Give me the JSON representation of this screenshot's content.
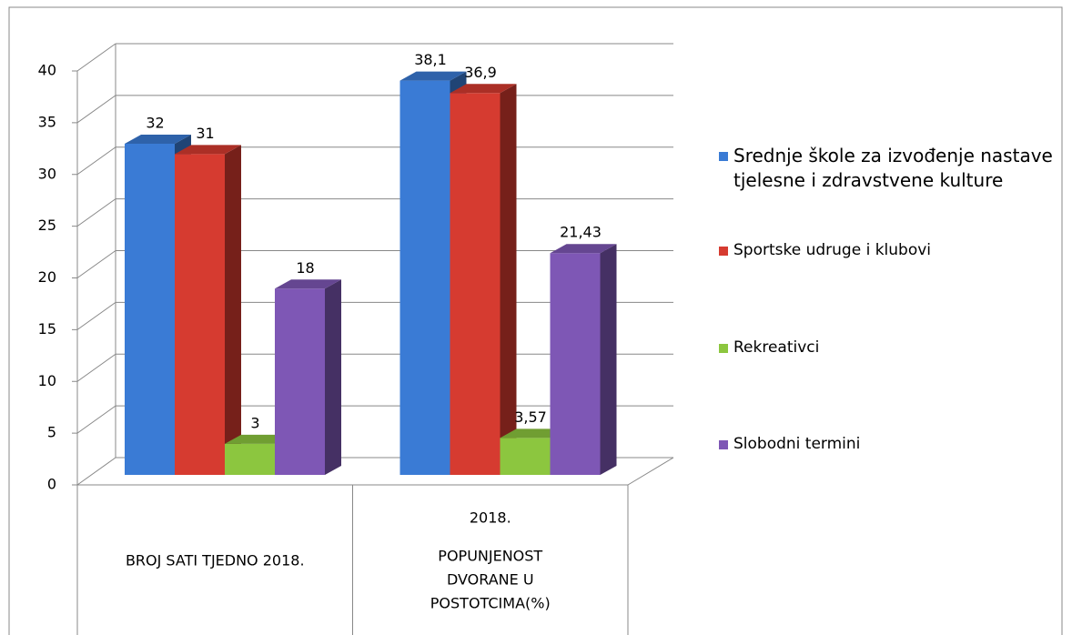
{
  "chart_data": {
    "type": "bar3d",
    "categories": [
      [
        "BROJ SATI TJEDNO 2018."
      ],
      [
        "2018.",
        "POPUNJENOST",
        "DVORANE U",
        "POSTOTCIMA(%)"
      ]
    ],
    "series": [
      {
        "name": "Srednje škole za izvođenje nastave tjelesne i zdravstvene kulture",
        "color": "#3a7bd5",
        "values": [
          32,
          38.1
        ],
        "value_labels": [
          "32",
          "38,1"
        ]
      },
      {
        "name": "Sportske udruge i klubovi",
        "color": "#d63b30",
        "values": [
          31,
          36.9
        ],
        "value_labels": [
          "31",
          "36,9"
        ]
      },
      {
        "name": "Rekreativci",
        "color": "#8cc63f",
        "values": [
          3,
          3.57
        ],
        "value_labels": [
          "3",
          "3,57"
        ]
      },
      {
        "name": "Slobodni termini",
        "color": "#7e57b5",
        "values": [
          18,
          21.43
        ],
        "value_labels": [
          "18",
          "21,43"
        ]
      }
    ],
    "ylim": [
      0,
      40
    ],
    "yticks": [
      0,
      5,
      10,
      15,
      20,
      25,
      30,
      35,
      40
    ],
    "grid": true,
    "legend": "right"
  }
}
